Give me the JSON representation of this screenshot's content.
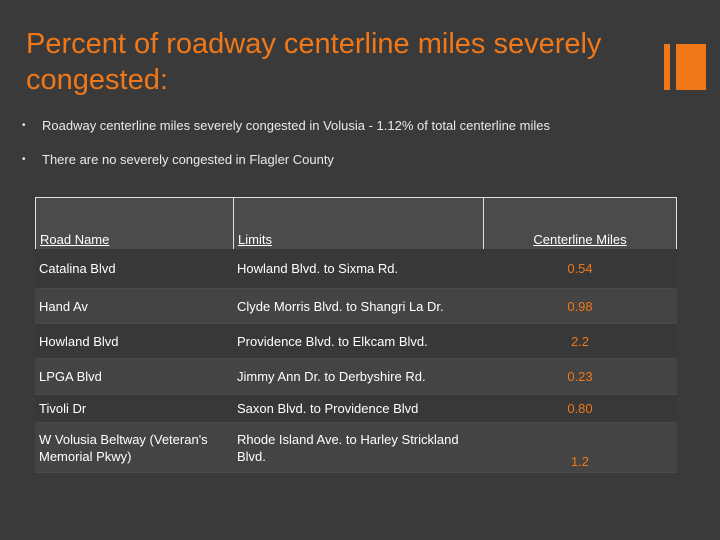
{
  "title": "Percent of roadway centerline miles severely congested:",
  "bullets": [
    "Roadway centerline miles severely congested in Volusia - 1.12% of total centerline miles",
    "There are no severely congested in Flagler County"
  ],
  "bullet_symbol": "•",
  "table": {
    "headers": [
      "Road Name",
      "Limits",
      "Centerline Miles"
    ],
    "rows": [
      [
        "Catalina Blvd",
        "Howland Blvd. to Sixma Rd.",
        "0.54"
      ],
      [
        "Hand Av",
        "Clyde Morris Blvd. to Shangri La Dr.",
        "0.98"
      ],
      [
        "Howland Blvd",
        "Providence Blvd. to Elkcam Blvd.",
        "2.2"
      ],
      [
        "LPGA Blvd",
        "Jimmy Ann Dr. to  Derbyshire Rd.",
        "0.23"
      ],
      [
        "Tivoli Dr",
        "Saxon Blvd. to Providence Blvd",
        "0.80"
      ],
      [
        "W Volusia Beltway (Veteran's Memorial Pkwy)",
        "Rhode Island Ave. to Harley Strickland Blvd.",
        "1.2"
      ]
    ]
  },
  "colors": {
    "accent": "#f07818",
    "background": "#3a3a3a",
    "text": "#ffffff"
  }
}
